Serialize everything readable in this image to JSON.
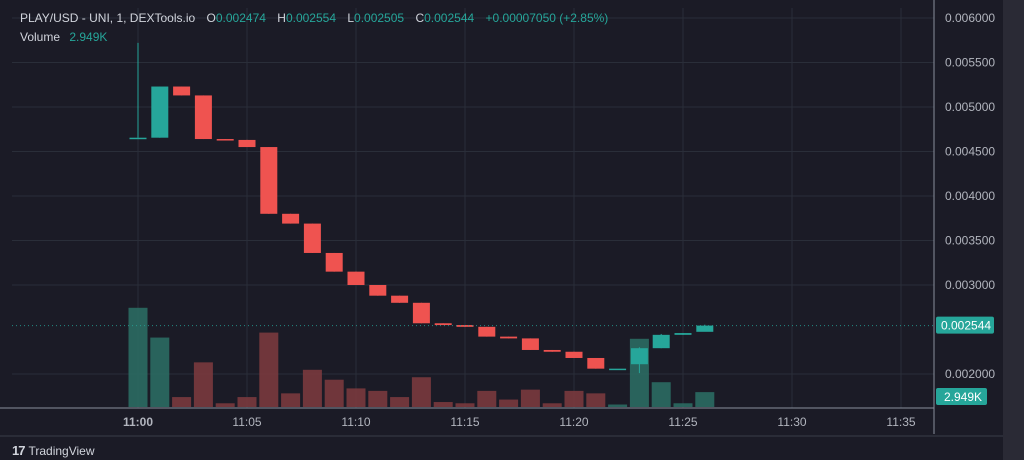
{
  "legend": {
    "title": "PLAY/USD - UNI, 1, DEXTools.io",
    "o_key": "O",
    "o_val": "0.002474",
    "h_key": "H",
    "h_val": "0.002554",
    "l_key": "L",
    "l_val": "0.002505",
    "c_key": "C",
    "c_val": "0.002544",
    "change": "+0.00007050 (+2.85%)",
    "volume_label": "Volume",
    "volume_val": "2.949K"
  },
  "footer": {
    "brand": "TradingView",
    "logo": "17"
  },
  "colors": {
    "up": "#26a69a",
    "down": "#ef5350",
    "grid": "#2a2e39",
    "bg": "#1b1b26"
  },
  "chart_data": {
    "type": "candlestick",
    "y_axis": {
      "min": 0.00175,
      "max": 0.00605,
      "ticks": [
        "0.006000",
        "0.005500",
        "0.005000",
        "0.004500",
        "0.004000",
        "0.003500",
        "0.003000",
        "0.002000"
      ],
      "tick_values": [
        0.006,
        0.0055,
        0.005,
        0.0045,
        0.004,
        0.0035,
        0.003,
        0.002
      ]
    },
    "x_axis": {
      "ticks": [
        "11:00",
        "11:05",
        "11:10",
        "11:15",
        "11:20",
        "11:25",
        "11:30",
        "11:35"
      ],
      "tick_minutes": [
        0,
        5,
        10,
        15,
        20,
        25,
        30,
        35
      ],
      "bold_tick": "11:00"
    },
    "last_price_label": "0.002544",
    "last_price": 0.002544,
    "volume_label": "2.949K",
    "candles": [
      {
        "t": 0,
        "o": 0.004655,
        "h": 0.00572,
        "l": 0.004655,
        "c": 0.004655,
        "v": 8.0
      },
      {
        "t": 1,
        "o": 0.004655,
        "h": 0.00523,
        "l": 0.004655,
        "c": 0.00523,
        "v": 5.6
      },
      {
        "t": 2,
        "o": 0.00523,
        "h": 0.00523,
        "l": 0.00513,
        "c": 0.00513,
        "v": 0.8
      },
      {
        "t": 3,
        "o": 0.00513,
        "h": 0.00513,
        "l": 0.00464,
        "c": 0.00464,
        "v": 3.6
      },
      {
        "t": 4,
        "o": 0.00464,
        "h": 0.00464,
        "l": 0.00463,
        "c": 0.00463,
        "v": 0.3
      },
      {
        "t": 5,
        "o": 0.00463,
        "h": 0.00463,
        "l": 0.00455,
        "c": 0.00455,
        "v": 0.8
      },
      {
        "t": 6,
        "o": 0.00455,
        "h": 0.00455,
        "l": 0.0038,
        "c": 0.0038,
        "v": 6.0
      },
      {
        "t": 7,
        "o": 0.0038,
        "h": 0.0038,
        "l": 0.00369,
        "c": 0.00369,
        "v": 1.1
      },
      {
        "t": 8,
        "o": 0.00369,
        "h": 0.00369,
        "l": 0.00336,
        "c": 0.00336,
        "v": 3.0
      },
      {
        "t": 9,
        "o": 0.00336,
        "h": 0.00336,
        "l": 0.00315,
        "c": 0.00315,
        "v": 2.2
      },
      {
        "t": 10,
        "o": 0.00315,
        "h": 0.00315,
        "l": 0.003,
        "c": 0.003,
        "v": 1.5
      },
      {
        "t": 11,
        "o": 0.003,
        "h": 0.003,
        "l": 0.00288,
        "c": 0.00288,
        "v": 1.3
      },
      {
        "t": 12,
        "o": 0.00288,
        "h": 0.00288,
        "l": 0.0028,
        "c": 0.0028,
        "v": 0.8
      },
      {
        "t": 13,
        "o": 0.0028,
        "h": 0.0028,
        "l": 0.00257,
        "c": 0.00257,
        "v": 2.4
      },
      {
        "t": 14,
        "o": 0.00257,
        "h": 0.00257,
        "l": 0.00255,
        "c": 0.00255,
        "v": 0.4
      },
      {
        "t": 15,
        "o": 0.00255,
        "h": 0.00255,
        "l": 0.00253,
        "c": 0.00253,
        "v": 0.3
      },
      {
        "t": 16,
        "o": 0.00253,
        "h": 0.00253,
        "l": 0.00242,
        "c": 0.00242,
        "v": 1.3
      },
      {
        "t": 17,
        "o": 0.00242,
        "h": 0.00242,
        "l": 0.0024,
        "c": 0.0024,
        "v": 0.6
      },
      {
        "t": 18,
        "o": 0.0024,
        "h": 0.0024,
        "l": 0.00227,
        "c": 0.00227,
        "v": 1.4
      },
      {
        "t": 19,
        "o": 0.00227,
        "h": 0.00227,
        "l": 0.00225,
        "c": 0.00225,
        "v": 0.3
      },
      {
        "t": 20,
        "o": 0.00225,
        "h": 0.00225,
        "l": 0.00218,
        "c": 0.00218,
        "v": 1.3
      },
      {
        "t": 21,
        "o": 0.00218,
        "h": 0.00218,
        "l": 0.00206,
        "c": 0.00206,
        "v": 1.1
      },
      {
        "t": 22,
        "o": 0.00206,
        "h": 0.00206,
        "l": 0.00206,
        "c": 0.00206,
        "v": 0.2
      },
      {
        "t": 23,
        "o": 0.00211,
        "h": 0.0023,
        "l": 0.00201,
        "c": 0.00229,
        "v": 5.5
      },
      {
        "t": 24,
        "o": 0.00229,
        "h": 0.00245,
        "l": 0.00229,
        "c": 0.00244,
        "v": 2.0
      },
      {
        "t": 25,
        "o": 0.00244,
        "h": 0.00246,
        "l": 0.00244,
        "c": 0.00246,
        "v": 0.3
      },
      {
        "t": 26,
        "o": 0.002474,
        "h": 0.002554,
        "l": 0.002505,
        "c": 0.002544,
        "v": 1.2
      }
    ]
  }
}
